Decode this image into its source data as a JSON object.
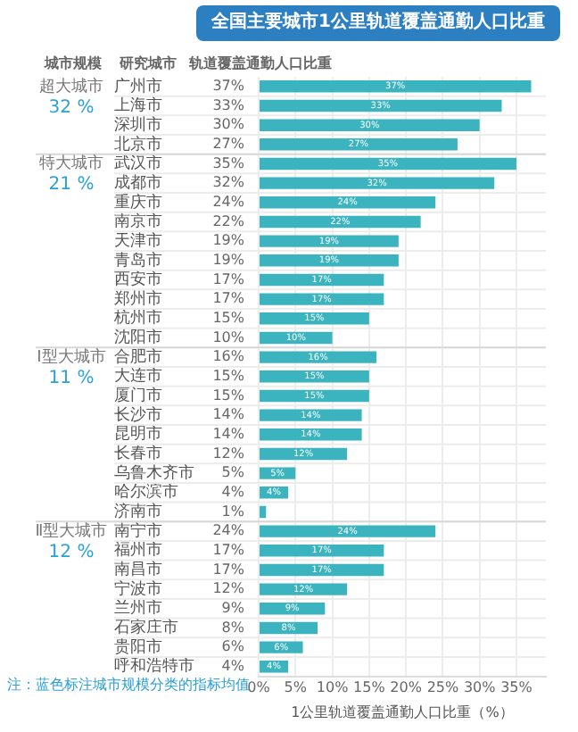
{
  "chart_data": {
    "type": "bar",
    "orientation": "horizontal",
    "title": "全国主要城市1公里轨道覆盖通勤人口比重",
    "ylabel": "研究城市",
    "xlabel": "1公里轨道覆盖通勤人口比重（%）",
    "categories": [
      "广州市",
      "上海市",
      "深圳市",
      "北京市",
      "武汉市",
      "成都市",
      "重庆市",
      "南京市",
      "天津市",
      "青岛市",
      "西安市",
      "郑州市",
      "杭州市",
      "沈阳市",
      "合肥市",
      "大连市",
      "厦门市",
      "长沙市",
      "昆明市",
      "长春市",
      "乌鲁木齐市",
      "哈尔滨市",
      "济南市",
      "南宁市",
      "福州市",
      "南昌市",
      "宁波市",
      "兰州市",
      "石家庄市",
      "贵阳市",
      "呼和浩特市"
    ],
    "values": [
      37,
      33,
      30,
      27,
      35,
      32,
      24,
      22,
      19,
      19,
      17,
      17,
      15,
      10,
      16,
      15,
      15,
      14,
      14,
      12,
      5,
      4,
      1,
      24,
      17,
      17,
      12,
      9,
      8,
      6,
      4
    ],
    "value_labels": [
      "37%",
      "33%",
      "30%",
      "27%",
      "35%",
      "32%",
      "24%",
      "22%",
      "19%",
      "19%",
      "17%",
      "17%",
      "15%",
      "10%",
      "16%",
      "15%",
      "15%",
      "14%",
      "14%",
      "12%",
      "5%",
      "4%",
      "1%",
      "24%",
      "17%",
      "17%",
      "12%",
      "9%",
      "8%",
      "6%",
      "4%"
    ],
    "color": "#3bb4bf",
    "xlim": [
      0,
      39
    ],
    "xticks": [
      {
        "value": 0,
        "label": "0%"
      },
      {
        "value": 5,
        "label": "5%"
      },
      {
        "value": 10,
        "label": "10%"
      },
      {
        "value": 15,
        "label": "15%"
      },
      {
        "value": 20,
        "label": "20%"
      },
      {
        "value": 25,
        "label": "25%"
      },
      {
        "value": 30,
        "label": "30%"
      },
      {
        "value": 35,
        "label": "35%"
      }
    ],
    "grid": "x",
    "legend": false,
    "annotations": [
      "城市规模",
      "轨道覆盖通勤人口比重",
      "注：蓝色标注城市规模分类的指标均值",
      "超大城市",
      "32 %",
      "特大城市",
      "21 %",
      "Ⅰ型大城市",
      "11 %",
      "Ⅱ型大城市",
      "12 %"
    ]
  }
}
